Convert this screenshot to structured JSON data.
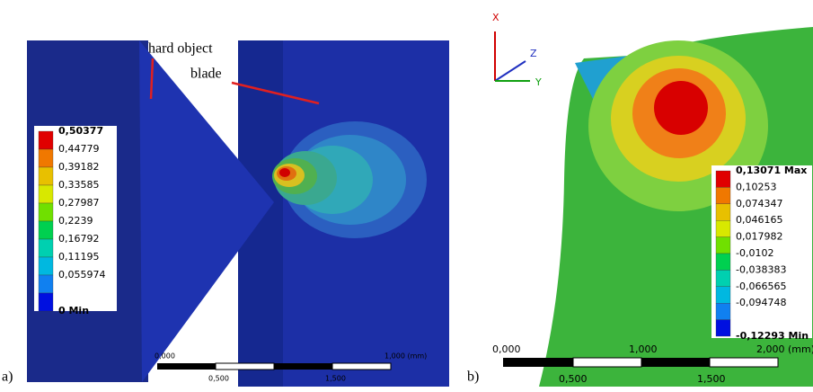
{
  "panels": [
    {
      "label": "a)",
      "annotations": [
        "hard object",
        "blade"
      ],
      "legend": {
        "entries": [
          "0,50377",
          "0,44779",
          "0,39182",
          "0,33585",
          "0,27987",
          "0,2239",
          "0,16792",
          "0,11195",
          "0,055974",
          "0 Min"
        ],
        "colors": [
          "#e00000",
          "#f07800",
          "#e8c000",
          "#d8e800",
          "#70e000",
          "#00d050",
          "#00d0b0",
          "#00b8e0",
          "#1080f0",
          "#0010e0"
        ]
      },
      "scale": {
        "top": [
          "0,000",
          "1,000 (mm)"
        ],
        "bottom": [
          "0,500",
          "1,500"
        ]
      }
    },
    {
      "label": "b)",
      "axes": [
        "X",
        "Z",
        "Y"
      ],
      "legend": {
        "entries": [
          "0,13071 Max",
          "0,10253",
          "0,074347",
          "0,046165",
          "0,017982",
          "-0,0102",
          "-0,038383",
          "-0,066565",
          "-0,094748",
          "-0,12293 Min"
        ],
        "colors": [
          "#e00000",
          "#f07800",
          "#e8c000",
          "#d8e800",
          "#70e000",
          "#00d050",
          "#00d0b0",
          "#00b8e0",
          "#1080f0",
          "#0010e0"
        ]
      },
      "scale": {
        "top": [
          "0,000",
          "1,000",
          "2,000 (mm)"
        ],
        "bottom": [
          "0,500",
          "1,500"
        ]
      }
    }
  ]
}
